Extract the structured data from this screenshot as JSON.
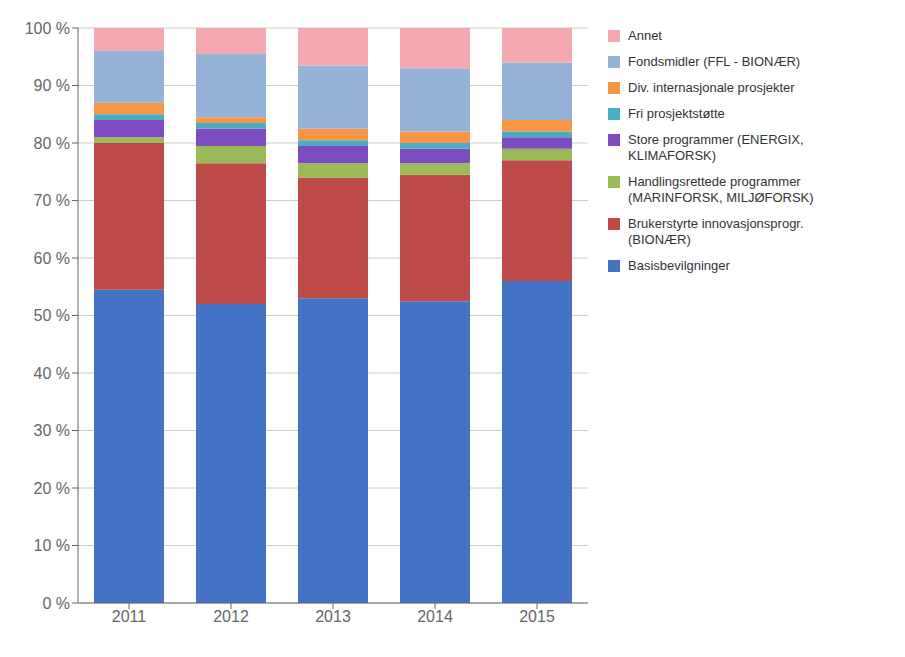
{
  "chart_data": {
    "type": "bar",
    "categories": [
      "2011",
      "2012",
      "2013",
      "2014",
      "2015"
    ],
    "series": [
      {
        "name": "Basisbevilgninger",
        "color": "#4472C4",
        "values": [
          54.5,
          52.0,
          53.0,
          52.5,
          56.0
        ]
      },
      {
        "name": "Brukerstyrte innovasjonsprogr.\n(BIONÆR)",
        "color": "#BE4B48",
        "values": [
          25.5,
          24.5,
          21.0,
          22.0,
          21.0
        ]
      },
      {
        "name": "Handlingsrettede programmer\n(MARINFORSK, MILJØFORSK)",
        "color": "#9BBB59",
        "values": [
          1.0,
          3.0,
          2.5,
          2.0,
          2.0
        ]
      },
      {
        "name": "Store programmer (ENERGIX,\nKLIMAFORSK)",
        "color": "#7E4BC1",
        "values": [
          3.0,
          3.0,
          3.0,
          2.5,
          2.0
        ]
      },
      {
        "name": "Fri prosjektstøtte",
        "color": "#4BACC6",
        "values": [
          1.0,
          1.0,
          1.0,
          1.0,
          1.0
        ]
      },
      {
        "name": "Div. internasjonale prosjekter",
        "color": "#F79646",
        "values": [
          2.0,
          1.0,
          2.0,
          2.0,
          2.0
        ]
      },
      {
        "name": "Fondsmidler (FFL - BIONÆR)",
        "color": "#95B3D7",
        "values": [
          9.0,
          11.0,
          11.0,
          11.0,
          10.0
        ]
      },
      {
        "name": "Annet",
        "color": "#F4A9B0",
        "values": [
          4.0,
          4.5,
          6.5,
          7.0,
          6.0
        ]
      }
    ],
    "stacked": true,
    "ylim": [
      0,
      100
    ],
    "yticks": [
      {
        "value": 0,
        "label": "0 %"
      },
      {
        "value": 10,
        "label": "10 %"
      },
      {
        "value": 20,
        "label": "20 %"
      },
      {
        "value": 30,
        "label": "30 %"
      },
      {
        "value": 40,
        "label": "40 %"
      },
      {
        "value": 50,
        "label": "50 %"
      },
      {
        "value": 60,
        "label": "60 %"
      },
      {
        "value": 70,
        "label": "70 %"
      },
      {
        "value": 80,
        "label": "80 %"
      },
      {
        "value": 90,
        "label": "90 %"
      },
      {
        "value": 100,
        "label": "100 %"
      }
    ],
    "grid": true,
    "legend": "right"
  }
}
